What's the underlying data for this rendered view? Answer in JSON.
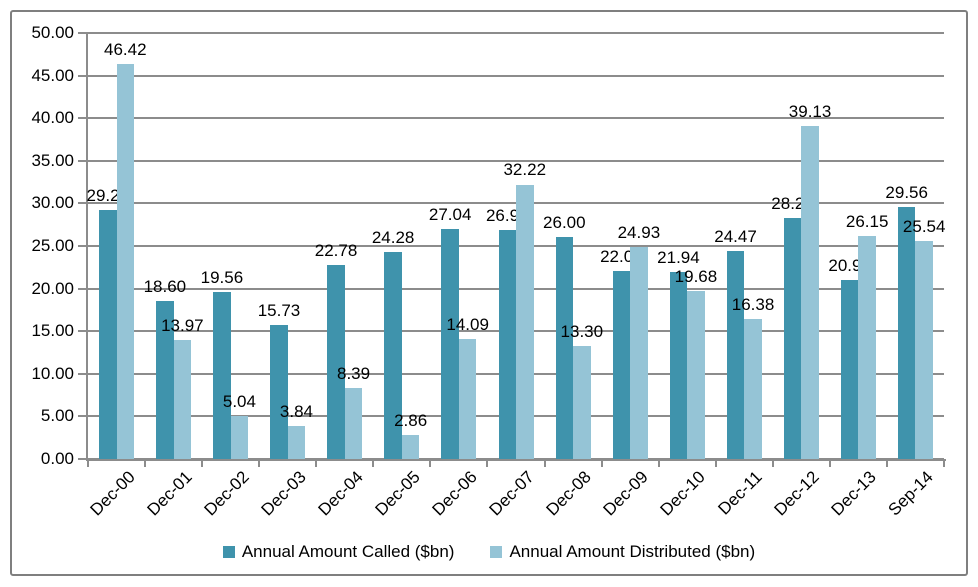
{
  "chart_data": {
    "type": "bar",
    "title": "",
    "xlabel": "",
    "ylabel": "",
    "categories": [
      "Dec-00",
      "Dec-01",
      "Dec-02",
      "Dec-03",
      "Dec-04",
      "Dec-05",
      "Dec-06",
      "Dec-07",
      "Dec-08",
      "Dec-09",
      "Dec-10",
      "Dec-11",
      "Dec-12",
      "Dec-13",
      "Sep-14"
    ],
    "series": [
      {
        "name": "Annual Amount Called ($bn)",
        "color": "#3F93AC",
        "values": [
          29.24,
          18.6,
          19.56,
          15.73,
          22.78,
          24.28,
          27.04,
          26.93,
          26.0,
          22.04,
          21.94,
          24.47,
          28.29,
          20.98,
          29.56
        ],
        "value_labels": [
          "29.24",
          "18.60",
          "19.56",
          "15.73",
          "22.78",
          "24.28",
          "27.04",
          "26.93",
          "26.00",
          "22.04",
          "21.94",
          "24.47",
          "28.29",
          "20.98",
          "29.56"
        ]
      },
      {
        "name": "Annual Amount Distributed ($bn)",
        "color": "#95C4D6",
        "values": [
          46.42,
          13.97,
          5.04,
          3.84,
          8.39,
          2.86,
          14.09,
          32.22,
          13.3,
          24.93,
          19.68,
          16.38,
          39.13,
          26.15,
          25.54
        ],
        "value_labels": [
          "46.42",
          "13.97",
          "5.04",
          "3.84",
          "8.39",
          "2.86",
          "14.09",
          "32.22",
          "13.30",
          "24.93",
          "19.68",
          "16.38",
          "39.13",
          "26.15",
          "25.54"
        ]
      }
    ],
    "ylim": [
      0,
      50
    ],
    "ytick_values": [
      0,
      5,
      10,
      15,
      20,
      25,
      30,
      35,
      40,
      45,
      50
    ],
    "ytick_labels": [
      "0.00",
      "5.00",
      "10.00",
      "15.00",
      "20.00",
      "25.00",
      "30.00",
      "35.00",
      "40.00",
      "45.00",
      "50.00"
    ],
    "grid": "horizontal",
    "legend_position": "bottom",
    "colors": {
      "gridline": "#8C8C8C",
      "axis": "#8C8C8C",
      "frame_border": "#7F7F7F",
      "label_text": "#000000",
      "background": "#FFFFFF"
    }
  }
}
